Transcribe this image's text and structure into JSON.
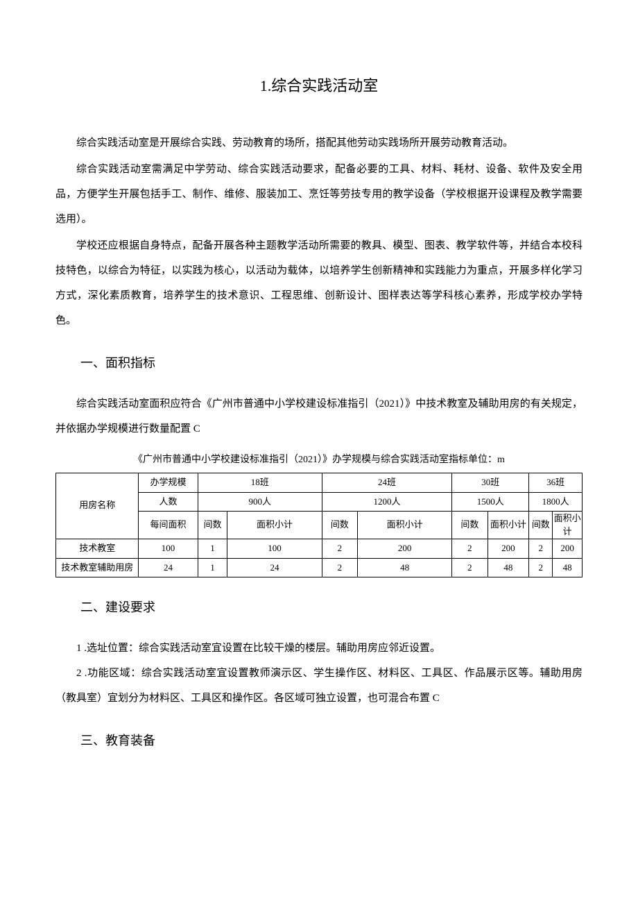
{
  "title": "1.综合实践活动室",
  "intro_paragraphs": [
    "综合实践活动室是开展综合实践、劳动教育的场所，搭配其他劳动实践场所开展劳动教育活动。",
    "综合实践活动室需满足中学劳动、综合实践活动要求，配备必要的工具、材料、耗材、设备、软件及安全用品，方便学生开展包括手工、制作、维修、服装加工、烹饪等劳技专用的教学设备（学校根据开设课程及教学需要选用）。",
    "学校还应根据自身特点，配备开展各种主题教学活动所需要的教具、模型、图表、教学软件等，并结合本校科技特色，以综合为特征，以实践为核心，以活动为载体，以培养学生创新精神和实践能力为重点，开展多样化学习方式，深化素质教育，培养学生的技术意识、工程思维、创新设计、图样表达等学科核心素养，形成学校办学特色。"
  ],
  "section1": {
    "header": "一、面积指标",
    "paragraph": "综合实践活动室面积应符合《广州市普通中小学校建设标准指引（2021）》中技术教室及辅助用房的有关规定，并依据办学规模进行数量配置 C"
  },
  "table": {
    "caption": "《广州市普通中小学校建设标准指引（2021）》办学规模与综合实践活动室指标单位：m",
    "row_header_label": "用房名称",
    "header_scale_label": "办学规模",
    "header_people_label": "人数",
    "header_area_each_label": "每间面积",
    "scales": [
      {
        "classes": "18班",
        "people": "900人"
      },
      {
        "classes": "24班",
        "people": "1200人"
      },
      {
        "classes": "30班",
        "people": "1500人"
      },
      {
        "classes": "36班",
        "people": "1800人"
      }
    ],
    "subheaders": {
      "count": "间数",
      "area": "面积小计",
      "area_short": "面积小计"
    },
    "rows": [
      {
        "name": "技术教室",
        "area_each": "100",
        "cells": [
          "1",
          "100",
          "2",
          "200",
          "2",
          "200",
          "2",
          "200"
        ]
      },
      {
        "name": "技术教室辅助用房",
        "area_each": "24",
        "cells": [
          "1",
          "24",
          "2",
          "48",
          "2",
          "48",
          "2",
          "48"
        ]
      }
    ]
  },
  "section2": {
    "header": "二、建设要求",
    "items": [
      "1 .选址位置：综合实践活动室宜设置在比较干燥的楼层。辅助用房应邻近设置。",
      "2 .功能区域：综合实践活动室宜设置教师演示区、学生操作区、材料区、工具区、作品展示区等。辅助用房（教具室）宜划分为材料区、工具区和操作区。各区域可独立设置，也可混合布置 C"
    ]
  },
  "section3": {
    "header": "三、教育装备"
  },
  "colors": {
    "text": "#000000",
    "background": "#ffffff",
    "border": "#000000"
  }
}
